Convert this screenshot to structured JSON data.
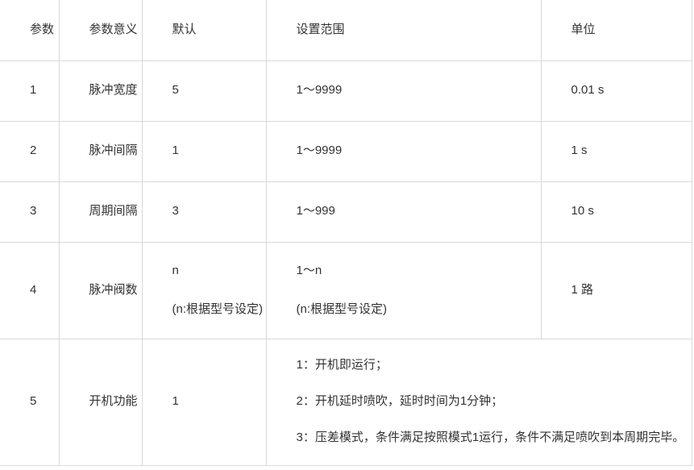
{
  "colors": {
    "background": "#ffffff",
    "border": "#d9d9d9",
    "text": "#333333"
  },
  "table": {
    "headers": [
      "参数",
      "参数意义",
      "默认",
      "设置范围",
      "单位"
    ],
    "rows": [
      {
        "param": "1",
        "meaning": "脉冲宽度",
        "default_lines": [
          "5"
        ],
        "range_lines": [
          "1～9999"
        ],
        "unit": "0.01 s"
      },
      {
        "param": "2",
        "meaning": "脉冲间隔",
        "default_lines": [
          "1"
        ],
        "range_lines": [
          "1～9999"
        ],
        "unit": "1 s"
      },
      {
        "param": "3",
        "meaning": "周期间隔",
        "default_lines": [
          "3"
        ],
        "range_lines": [
          "1～999"
        ],
        "unit": "10 s"
      },
      {
        "param": "4",
        "meaning": "脉冲阀数",
        "default_lines": [
          "n",
          "(n:根据型号设定)"
        ],
        "range_lines": [
          "1～n",
          "(n:根据型号设定)"
        ],
        "unit": "1 路"
      },
      {
        "param": "5",
        "meaning": "开机功能",
        "default_lines": [
          "1"
        ],
        "range_lines": [
          "1：开机即运行；",
          "2：开机延时喷吹，延时时间为1分钟；",
          "3：压差模式，条件满足按照模式1运行，条件不满足喷吹到本周期完毕。"
        ],
        "unit": ""
      }
    ]
  }
}
